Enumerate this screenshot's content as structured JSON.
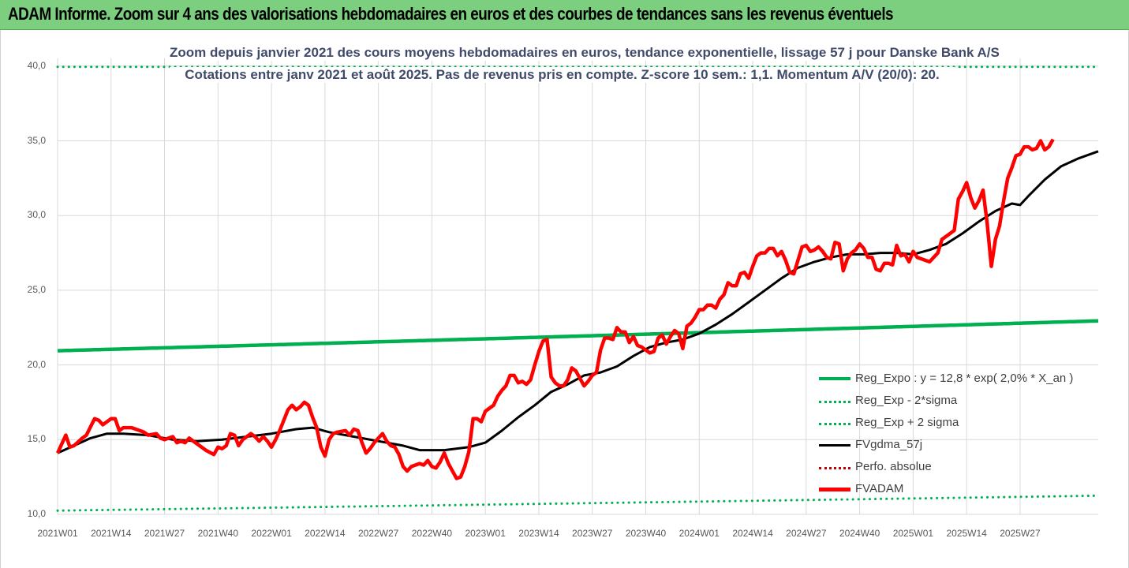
{
  "header": {
    "title": "ADAM Informe. Zoom sur 4 ans des valorisations hebdomadaires en euros et des courbes de tendances sans les revenus éventuels"
  },
  "colors": {
    "header_bg": "#7ccf7f",
    "reg_expo": "#00b050",
    "sigma_bands": "#00b050",
    "fvgdma": "#000000",
    "perfo": "#c00000",
    "fvadam": "#ff0000"
  },
  "chart_data": {
    "type": "line",
    "title": "Zoom depuis janvier 2021 des cours moyens hebdomadaires en euros, tendance exponentielle, lissage 57 j pour Danske Bank A/S",
    "subtitle": "Cotations entre janv 2021 et août 2025.  Pas de revenus pris en compte. Z-score 10 sem.: 1,1. Momentum A/V (20/0): 20.",
    "xlabel": "",
    "ylabel": "",
    "ylim": [
      10,
      40
    ],
    "yticks": [
      "10,0",
      "15,0",
      "20,0",
      "25,0",
      "30,0",
      "35,0",
      "40,0"
    ],
    "xticks": [
      "2021W01",
      "2021W14",
      "2021W27",
      "2021W40",
      "2022W01",
      "2022W14",
      "2022W27",
      "2022W40",
      "2023W01",
      "2023W14",
      "2023W27",
      "2023W40",
      "2024W01",
      "2024W14",
      "2024W27",
      "2024W40",
      "2025W01",
      "2025W14",
      "2025W27"
    ],
    "grid": true,
    "legend_position": "bottom-right",
    "series": [
      {
        "name": "Reg_Expo : y = 12,8 * exp( 2,0% *  X_an )",
        "style": "solid",
        "start": 20.95,
        "end": 22.95
      },
      {
        "name": "Reg_Exp - 2*sigma",
        "style": "dotted",
        "start": 10.25,
        "end": 11.25
      },
      {
        "name": "Reg_Exp + 2 sigma",
        "style": "dotted",
        "start": 39.95,
        "end": 39.95
      },
      {
        "name": "FVgdma_57j",
        "style": "solid",
        "anchors": [
          [
            0,
            14.1
          ],
          [
            4,
            14.6
          ],
          [
            8,
            15.1
          ],
          [
            12,
            15.4
          ],
          [
            16,
            15.4
          ],
          [
            22,
            15.3
          ],
          [
            28,
            15.0
          ],
          [
            34,
            14.9
          ],
          [
            40,
            15.0
          ],
          [
            46,
            15.2
          ],
          [
            52,
            15.4
          ],
          [
            58,
            15.7
          ],
          [
            62,
            15.8
          ],
          [
            66,
            15.5
          ],
          [
            72,
            15.2
          ],
          [
            78,
            14.9
          ],
          [
            84,
            14.6
          ],
          [
            88,
            14.3
          ],
          [
            94,
            14.3
          ],
          [
            100,
            14.5
          ],
          [
            104,
            14.8
          ],
          [
            108,
            15.6
          ],
          [
            112,
            16.5
          ],
          [
            116,
            17.3
          ],
          [
            120,
            18.2
          ],
          [
            124,
            18.7
          ],
          [
            128,
            19.3
          ],
          [
            132,
            19.5
          ],
          [
            136,
            19.9
          ],
          [
            140,
            20.6
          ],
          [
            144,
            21.2
          ],
          [
            148,
            21.5
          ],
          [
            152,
            21.7
          ],
          [
            156,
            22.1
          ],
          [
            160,
            22.7
          ],
          [
            164,
            23.4
          ],
          [
            168,
            24.2
          ],
          [
            172,
            25.0
          ],
          [
            176,
            25.8
          ],
          [
            180,
            26.5
          ],
          [
            184,
            26.9
          ],
          [
            188,
            27.2
          ],
          [
            192,
            27.4
          ],
          [
            196,
            27.4
          ],
          [
            200,
            27.5
          ],
          [
            204,
            27.5
          ],
          [
            208,
            27.4
          ],
          [
            212,
            27.7
          ],
          [
            216,
            28.1
          ],
          [
            220,
            28.8
          ],
          [
            224,
            29.6
          ],
          [
            228,
            30.3
          ],
          [
            232,
            30.8
          ],
          [
            234,
            30.7
          ],
          [
            236,
            31.3
          ],
          [
            240,
            32.4
          ],
          [
            244,
            33.3
          ],
          [
            248,
            33.8
          ],
          [
            252,
            34.2
          ],
          [
            253,
            34.3
          ]
        ]
      },
      {
        "name": "Perfo. absolue",
        "style": "dotted",
        "values": []
      },
      {
        "name": "FVADAM",
        "style": "solid",
        "anchors": [
          [
            0,
            14.1
          ],
          [
            2,
            15.3
          ],
          [
            3,
            14.5
          ],
          [
            4,
            14.6
          ],
          [
            6,
            15.1
          ],
          [
            7,
            15.3
          ],
          [
            9,
            16.4
          ],
          [
            10,
            16.3
          ],
          [
            11,
            16.0
          ],
          [
            13,
            16.4
          ],
          [
            14,
            16.4
          ],
          [
            15,
            15.6
          ],
          [
            16,
            15.8
          ],
          [
            18,
            15.8
          ],
          [
            20,
            15.6
          ],
          [
            21,
            15.5
          ],
          [
            22,
            15.3
          ],
          [
            24,
            15.4
          ],
          [
            25,
            15.1
          ],
          [
            26,
            15.0
          ],
          [
            28,
            15.2
          ],
          [
            29,
            14.8
          ],
          [
            30,
            14.9
          ],
          [
            31,
            14.8
          ],
          [
            32,
            15.1
          ],
          [
            34,
            14.7
          ],
          [
            36,
            14.3
          ],
          [
            38,
            14.0
          ],
          [
            39,
            14.5
          ],
          [
            40,
            14.4
          ],
          [
            41,
            14.6
          ],
          [
            42,
            15.4
          ],
          [
            43,
            15.3
          ],
          [
            44,
            14.6
          ],
          [
            45,
            15.0
          ],
          [
            47,
            15.4
          ],
          [
            48,
            15.2
          ],
          [
            49,
            14.9
          ],
          [
            50,
            15.2
          ],
          [
            51,
            14.9
          ],
          [
            52,
            14.5
          ],
          [
            53,
            15.0
          ],
          [
            54,
            15.6
          ],
          [
            56,
            17.0
          ],
          [
            57,
            17.3
          ],
          [
            58,
            17.0
          ],
          [
            59,
            17.2
          ],
          [
            60,
            17.5
          ],
          [
            61,
            17.3
          ],
          [
            62,
            16.5
          ],
          [
            63,
            15.8
          ],
          [
            64,
            14.5
          ],
          [
            65,
            13.9
          ],
          [
            66,
            15.0
          ],
          [
            67,
            15.4
          ],
          [
            68,
            15.5
          ],
          [
            70,
            15.6
          ],
          [
            71,
            15.3
          ],
          [
            72,
            15.7
          ],
          [
            73,
            15.6
          ],
          [
            74,
            14.8
          ],
          [
            75,
            14.1
          ],
          [
            76,
            14.4
          ],
          [
            77,
            14.8
          ],
          [
            78,
            15.1
          ],
          [
            79,
            15.4
          ],
          [
            80,
            14.9
          ],
          [
            81,
            14.6
          ],
          [
            82,
            14.5
          ],
          [
            83,
            14.0
          ],
          [
            84,
            13.2
          ],
          [
            85,
            12.9
          ],
          [
            86,
            13.2
          ],
          [
            88,
            13.4
          ],
          [
            89,
            13.3
          ],
          [
            90,
            13.6
          ],
          [
            91,
            13.2
          ],
          [
            92,
            13.1
          ],
          [
            93,
            13.5
          ],
          [
            94,
            14.1
          ],
          [
            95,
            13.4
          ],
          [
            96,
            12.9
          ],
          [
            97,
            12.4
          ],
          [
            98,
            12.5
          ],
          [
            99,
            13.2
          ],
          [
            100,
            14.2
          ],
          [
            101,
            16.4
          ],
          [
            102,
            16.4
          ],
          [
            103,
            16.2
          ],
          [
            104,
            16.9
          ],
          [
            105,
            17.1
          ],
          [
            106,
            17.3
          ],
          [
            107,
            17.9
          ],
          [
            108,
            18.3
          ],
          [
            109,
            18.6
          ],
          [
            110,
            19.3
          ],
          [
            111,
            19.3
          ],
          [
            112,
            18.8
          ],
          [
            113,
            18.9
          ],
          [
            114,
            18.7
          ],
          [
            115,
            19.0
          ],
          [
            116,
            20.0
          ],
          [
            117,
            20.9
          ],
          [
            118,
            21.6
          ],
          [
            119,
            21.7
          ],
          [
            120,
            19.2
          ],
          [
            121,
            18.8
          ],
          [
            122,
            18.6
          ],
          [
            123,
            18.6
          ],
          [
            124,
            19.0
          ],
          [
            125,
            19.8
          ],
          [
            126,
            19.6
          ],
          [
            127,
            19.1
          ],
          [
            128,
            18.6
          ],
          [
            129,
            18.9
          ],
          [
            130,
            19.3
          ],
          [
            131,
            19.5
          ],
          [
            132,
            21.0
          ],
          [
            133,
            21.8
          ],
          [
            134,
            21.8
          ],
          [
            135,
            21.7
          ],
          [
            136,
            22.5
          ],
          [
            137,
            22.2
          ],
          [
            138,
            22.2
          ],
          [
            139,
            21.5
          ],
          [
            140,
            21.9
          ],
          [
            141,
            21.3
          ],
          [
            142,
            21.2
          ],
          [
            143,
            21.0
          ],
          [
            144,
            20.8
          ],
          [
            145,
            20.9
          ],
          [
            146,
            21.8
          ],
          [
            147,
            22.0
          ],
          [
            148,
            21.4
          ],
          [
            149,
            21.9
          ],
          [
            150,
            22.3
          ],
          [
            151,
            22.1
          ],
          [
            152,
            21.1
          ],
          [
            153,
            22.6
          ],
          [
            154,
            22.8
          ],
          [
            155,
            23.2
          ],
          [
            156,
            23.7
          ],
          [
            157,
            23.7
          ],
          [
            158,
            24.0
          ],
          [
            159,
            24.0
          ],
          [
            160,
            23.8
          ],
          [
            161,
            24.4
          ],
          [
            162,
            24.7
          ],
          [
            163,
            25.5
          ],
          [
            164,
            25.3
          ],
          [
            165,
            25.3
          ],
          [
            166,
            26.1
          ],
          [
            167,
            26.2
          ],
          [
            168,
            25.8
          ],
          [
            169,
            26.6
          ],
          [
            170,
            27.3
          ],
          [
            171,
            27.5
          ],
          [
            172,
            27.5
          ],
          [
            173,
            27.8
          ],
          [
            174,
            27.8
          ],
          [
            175,
            27.3
          ],
          [
            176,
            27.6
          ],
          [
            177,
            27.0
          ],
          [
            178,
            26.2
          ],
          [
            179,
            26.1
          ],
          [
            180,
            27.0
          ],
          [
            181,
            27.9
          ],
          [
            182,
            28.0
          ],
          [
            183,
            27.6
          ],
          [
            184,
            27.7
          ],
          [
            185,
            27.9
          ],
          [
            186,
            27.6
          ],
          [
            187,
            27.2
          ],
          [
            188,
            27.1
          ],
          [
            189,
            28.2
          ],
          [
            190,
            28.1
          ],
          [
            191,
            26.3
          ],
          [
            192,
            27.1
          ],
          [
            193,
            27.5
          ],
          [
            194,
            27.7
          ],
          [
            195,
            28.1
          ],
          [
            196,
            27.8
          ],
          [
            197,
            27.2
          ],
          [
            198,
            27.2
          ],
          [
            199,
            26.4
          ],
          [
            200,
            26.3
          ],
          [
            201,
            26.8
          ],
          [
            202,
            26.8
          ],
          [
            203,
            26.7
          ],
          [
            204,
            28.0
          ],
          [
            205,
            27.3
          ],
          [
            206,
            27.4
          ],
          [
            207,
            26.9
          ],
          [
            208,
            27.6
          ],
          [
            209,
            27.2
          ],
          [
            210,
            27.1
          ],
          [
            211,
            27.0
          ],
          [
            212,
            26.9
          ],
          [
            213,
            27.2
          ],
          [
            214,
            27.5
          ],
          [
            215,
            28.4
          ],
          [
            216,
            28.6
          ],
          [
            217,
            28.8
          ],
          [
            218,
            29.0
          ],
          [
            219,
            31.1
          ],
          [
            220,
            31.6
          ],
          [
            221,
            32.2
          ],
          [
            222,
            31.2
          ],
          [
            223,
            30.5
          ],
          [
            224,
            31.0
          ],
          [
            225,
            31.7
          ],
          [
            226,
            29.5
          ],
          [
            227,
            26.6
          ],
          [
            228,
            28.4
          ],
          [
            229,
            29.3
          ],
          [
            230,
            31.0
          ],
          [
            231,
            32.5
          ],
          [
            232,
            33.2
          ],
          [
            233,
            34.0
          ],
          [
            234,
            34.1
          ],
          [
            235,
            34.6
          ],
          [
            236,
            34.6
          ],
          [
            237,
            34.4
          ],
          [
            238,
            34.5
          ],
          [
            239,
            35.0
          ],
          [
            240,
            34.4
          ],
          [
            241,
            34.6
          ],
          [
            242,
            35.1
          ]
        ]
      }
    ]
  }
}
